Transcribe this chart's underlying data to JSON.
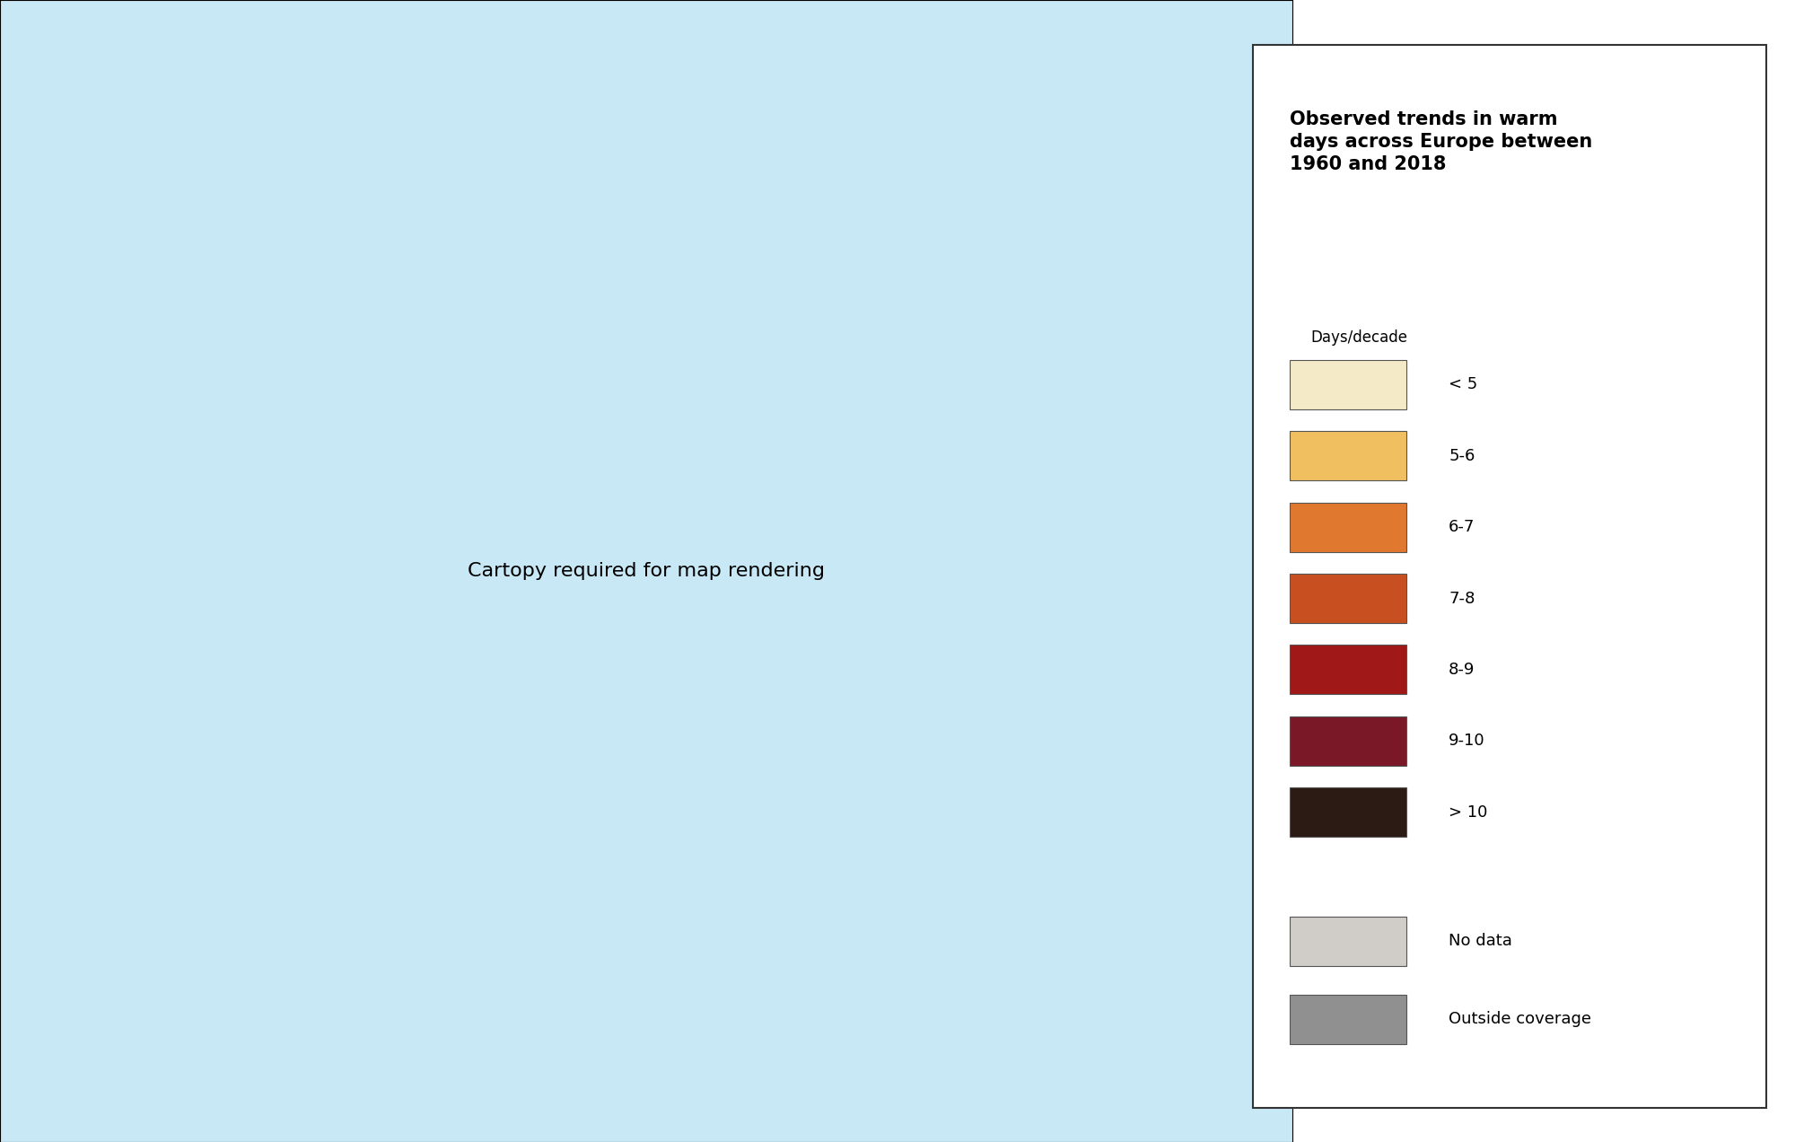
{
  "title": "Observed trends in warm\ndays across Europe between\n1960 and 2018",
  "legend_subtitle": "Days/decade",
  "legend_items": [
    {
      "label": "< 5",
      "color": "#F5EAC8"
    },
    {
      "label": "5-6",
      "color": "#F0C060"
    },
    {
      "label": "6-7",
      "color": "#E07830"
    },
    {
      "label": "7-8",
      "color": "#C85020"
    },
    {
      "label": "8-9",
      "color": "#A01818"
    },
    {
      "label": "9-10",
      "color": "#7A1828"
    },
    {
      "label": "> 10",
      "color": "#2C1A14"
    }
  ],
  "extra_items": [
    {
      "label": "No data",
      "color": "#D0CCC8"
    },
    {
      "label": "Outside coverage",
      "color": "#909090"
    }
  ],
  "ocean_color": "#C8E8F5",
  "land_border_color": "#A0C0D8",
  "grid_color": "#A0BFD0",
  "background_color": "#FFFFFF",
  "map_bg": "#C8E8F5",
  "legend_box_bg": "#FFFFFF",
  "legend_box_border": "#333333",
  "title_fontsize": 15,
  "legend_fontsize": 13,
  "subtitle_fontsize": 12
}
